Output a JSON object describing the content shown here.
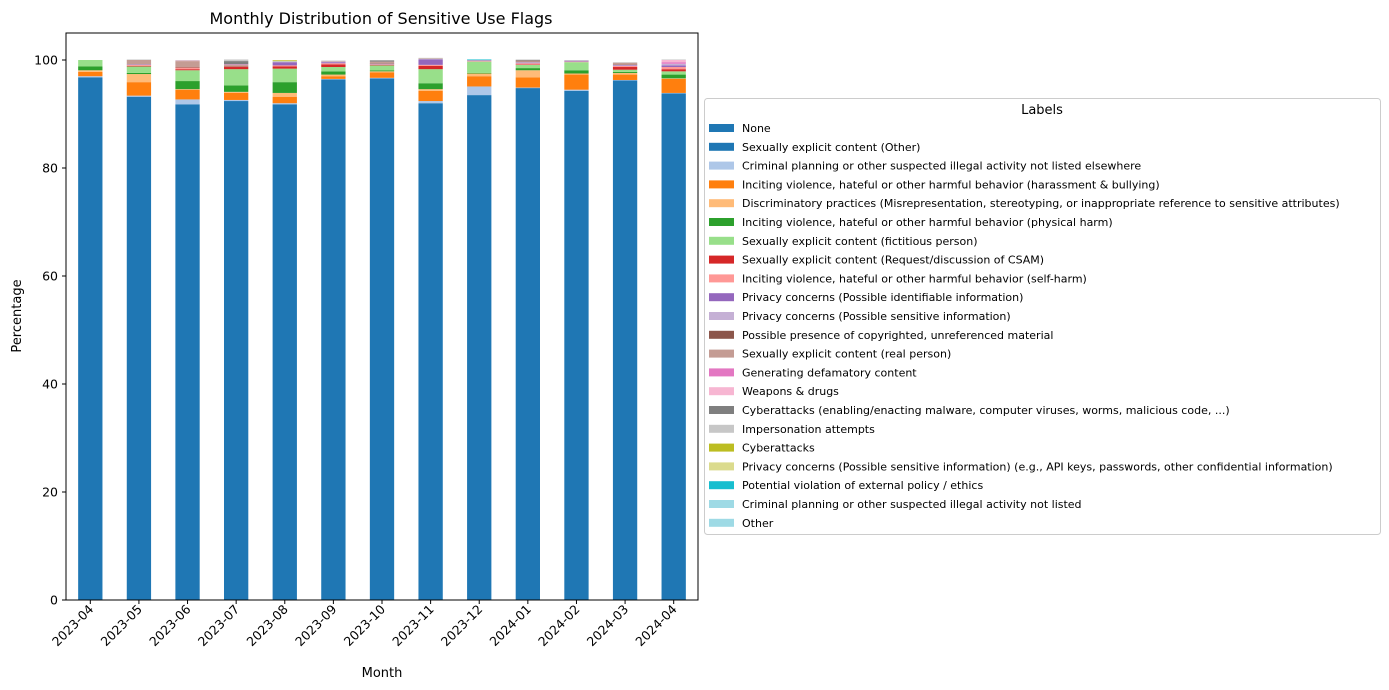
{
  "chart_data": {
    "type": "bar",
    "stacked": true,
    "title": "Monthly Distribution of Sensitive Use Flags",
    "xlabel": "Month",
    "ylabel": "Percentage",
    "ylim": [
      0,
      105
    ],
    "yticks": [
      0,
      20,
      40,
      60,
      80,
      100
    ],
    "grid": false,
    "legend_title": "Labels",
    "legend_position": "right",
    "categories": [
      "2023-04",
      "2023-05",
      "2023-06",
      "2023-07",
      "2023-08",
      "2023-09",
      "2023-10",
      "2023-11",
      "2023-12",
      "2024-01",
      "2024-02",
      "2024-03",
      "2024-04"
    ],
    "series": [
      {
        "name": "None",
        "color": "#1f77b4",
        "values": [
          96.8,
          93.2,
          91.8,
          92.4,
          91.8,
          96.4,
          96.6,
          92.0,
          93.5,
          94.8,
          94.3,
          96.2,
          93.8
        ]
      },
      {
        "name": "Sexually explicit content (Other)",
        "color": "#1f77b4",
        "values": [
          0,
          0,
          0,
          0,
          0,
          0,
          0,
          0,
          0,
          0,
          0,
          0,
          0
        ]
      },
      {
        "name": "Criminal planning or other suspected illegal activity not listed elsewhere",
        "color": "#aec7e8",
        "values": [
          0.2,
          0.2,
          0.9,
          0.2,
          0.2,
          0.1,
          0.1,
          0.4,
          1.6,
          0.1,
          0.2,
          0.1,
          0.1
        ]
      },
      {
        "name": "Inciting violence, hateful or other harmful behavior (harassment & bullying)",
        "color": "#ff7f0e",
        "values": [
          0.8,
          2.5,
          1.8,
          1.3,
          1.2,
          0.5,
          1.0,
          1.9,
          1.9,
          1.9,
          2.8,
          1.0,
          2.6
        ]
      },
      {
        "name": "Discriminatory practices (Misrepresentation, stereotyping, or inappropriate reference to sensitive attributes)",
        "color": "#ffbb78",
        "values": [
          0.3,
          1.5,
          0.1,
          0.2,
          0.7,
          0.3,
          0.2,
          0.3,
          0.5,
          1.3,
          0.2,
          0.3,
          0.1
        ]
      },
      {
        "name": "Inciting violence, hateful or other harmful behavior (physical harm)",
        "color": "#2ca02c",
        "values": [
          0.7,
          0.2,
          1.5,
          1.2,
          2.0,
          0.6,
          0.2,
          1.1,
          0.1,
          0.4,
          0.6,
          0.2,
          0.7
        ]
      },
      {
        "name": "Sexually explicit content (fictitious person)",
        "color": "#98df8a",
        "values": [
          1.2,
          1.2,
          2.0,
          3.0,
          2.5,
          0.8,
          0.9,
          2.6,
          2.1,
          0.6,
          1.5,
          0.4,
          0.6
        ]
      },
      {
        "name": "Sexually explicit content (Request/discussion of CSAM)",
        "color": "#d62728",
        "values": [
          0,
          0.1,
          0.2,
          0.4,
          0.4,
          0.5,
          0.1,
          0.6,
          0,
          0.1,
          0,
          0.5,
          0.4
        ]
      },
      {
        "name": "Inciting violence, hateful or other harmful behavior (self-harm)",
        "color": "#ff9896",
        "values": [
          0,
          0.2,
          0.3,
          0.1,
          0.2,
          0.2,
          0.1,
          0.2,
          0.1,
          0.2,
          0.1,
          0.2,
          0.4
        ]
      },
      {
        "name": "Privacy concerns (Possible identifiable information)",
        "color": "#9467bd",
        "values": [
          0,
          0.1,
          0,
          0,
          0.6,
          0.2,
          0.1,
          1.0,
          0.1,
          0.1,
          0.1,
          0.1,
          0.3
        ]
      },
      {
        "name": "Privacy concerns (Possible sensitive information)",
        "color": "#c5b0d5",
        "values": [
          0,
          0,
          0,
          0,
          0,
          0.1,
          0,
          0.1,
          0,
          0.1,
          0.1,
          0.1,
          0.3
        ]
      },
      {
        "name": "Possible presence of copyrighted, unreferenced material",
        "color": "#8c564b",
        "values": [
          0,
          0,
          0.1,
          0.1,
          0,
          0,
          0.1,
          0,
          0,
          0.1,
          0,
          0.1,
          0
        ]
      },
      {
        "name": "Sexually explicit content (real person)",
        "color": "#c49c94",
        "values": [
          0,
          0.8,
          1.1,
          0.2,
          0,
          0.1,
          0.3,
          0.1,
          0,
          0.2,
          0,
          0.3,
          0
        ]
      },
      {
        "name": "Generating defamatory content",
        "color": "#e377c2",
        "values": [
          0,
          0,
          0,
          0.1,
          0,
          0,
          0,
          0,
          0,
          0,
          0,
          0,
          0.3
        ]
      },
      {
        "name": "Weapons & drugs",
        "color": "#f7b6d2",
        "values": [
          0,
          0,
          0.1,
          0,
          0,
          0,
          0,
          0,
          0,
          0,
          0,
          0,
          0.4
        ]
      },
      {
        "name": "Cyberattacks (enabling/enacting malware, computer viruses, worms, malicious code, ...)",
        "color": "#7f7f7f",
        "values": [
          0,
          0,
          0,
          0.6,
          0,
          0,
          0.2,
          0,
          0,
          0.1,
          0,
          0,
          0
        ]
      },
      {
        "name": "Impersonation attempts",
        "color": "#c7c7c7",
        "values": [
          0,
          0.1,
          0.1,
          0.3,
          0.2,
          0.1,
          0.1,
          0.1,
          0.1,
          0.1,
          0.1,
          0.1,
          0.1
        ]
      },
      {
        "name": "Cyberattacks",
        "color": "#bcbd22",
        "values": [
          0,
          0,
          0,
          0,
          0.1,
          0,
          0,
          0,
          0,
          0,
          0,
          0,
          0
        ]
      },
      {
        "name": "Privacy concerns (Possible sensitive information) (e.g., API keys, passwords, other confidential information)",
        "color": "#dbdb8d",
        "values": [
          0,
          0,
          0,
          0,
          0.1,
          0,
          0,
          0,
          0,
          0,
          0,
          0,
          0
        ]
      },
      {
        "name": "Potential violation of external policy / ethics",
        "color": "#17becf",
        "values": [
          0,
          0,
          0,
          0,
          0,
          0,
          0,
          0,
          0.1,
          0,
          0,
          0,
          0
        ]
      },
      {
        "name": "Criminal planning or other suspected illegal activity not listed",
        "color": "#9edae5",
        "values": [
          0,
          0,
          0,
          0,
          0,
          0,
          0,
          0,
          0,
          0,
          0,
          0,
          0
        ]
      },
      {
        "name": "Other",
        "color": "#9edae5",
        "values": [
          0,
          0,
          0,
          0,
          0,
          0,
          0,
          0,
          0,
          0,
          0,
          0,
          0
        ]
      }
    ]
  }
}
